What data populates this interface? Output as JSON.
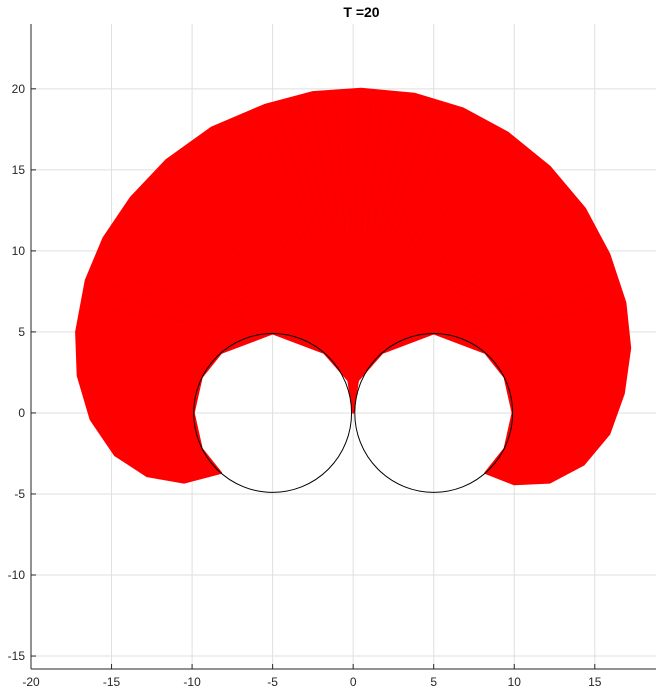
{
  "chart_data": {
    "type": "scatter",
    "title": "T =20",
    "xlabel": "",
    "ylabel": "",
    "xlim": [
      -20,
      18.8
    ],
    "ylim": [
      -15.8,
      24
    ],
    "xticks": [
      -20,
      -15,
      -10,
      -5,
      0,
      5,
      10,
      15
    ],
    "yticks": [
      -15,
      -10,
      -5,
      0,
      5,
      10,
      15,
      20
    ],
    "xtick_labels": [
      "-20",
      "-15",
      "-10",
      "-5",
      "0",
      "5",
      "10",
      "15"
    ],
    "ytick_labels": [
      "-15",
      "-10",
      "-5",
      "0",
      "5",
      "10",
      "15",
      "20"
    ],
    "grid": true,
    "legend": "none",
    "series": [
      {
        "kind": "star-markers",
        "color": "#ff0000",
        "description_points": "involute filaments unwinding from two circles, tips reaching the outer envelope",
        "outer_envelope": [
          [
            -8.2,
            -3.7
          ],
          [
            -10.5,
            -4.3
          ],
          [
            -12.8,
            -3.9
          ],
          [
            -14.8,
            -2.6
          ],
          [
            -16.3,
            -0.4
          ],
          [
            -17.1,
            2.3
          ],
          [
            -17.2,
            5.0
          ],
          [
            -16.6,
            8.2
          ],
          [
            -15.5,
            10.8
          ],
          [
            -13.8,
            13.3
          ],
          [
            -11.6,
            15.6
          ],
          [
            -8.8,
            17.6
          ],
          [
            -5.5,
            19.0
          ],
          [
            -2.5,
            19.8
          ],
          [
            0.5,
            20.0
          ],
          [
            3.8,
            19.7
          ],
          [
            6.8,
            18.8
          ],
          [
            9.6,
            17.3
          ],
          [
            12.2,
            15.2
          ],
          [
            14.4,
            12.6
          ],
          [
            15.9,
            9.8
          ],
          [
            16.9,
            6.8
          ],
          [
            17.2,
            4.0
          ],
          [
            16.8,
            1.2
          ],
          [
            15.9,
            -1.3
          ],
          [
            14.3,
            -3.2
          ],
          [
            12.2,
            -4.3
          ],
          [
            10.0,
            -4.4
          ],
          [
            8.2,
            -3.7
          ]
        ],
        "inner_boundary_left": [
          [
            -8.2,
            -3.7
          ],
          [
            -9.4,
            -2.2
          ],
          [
            -9.9,
            0.0
          ],
          [
            -9.4,
            2.2
          ],
          [
            -8.2,
            3.7
          ],
          [
            -5.0,
            4.9
          ],
          [
            -1.8,
            3.7
          ],
          [
            -0.3,
            2.0
          ],
          [
            0.0,
            0.0
          ]
        ],
        "inner_boundary_right": [
          [
            0.0,
            0.0
          ],
          [
            0.3,
            2.0
          ],
          [
            1.8,
            3.7
          ],
          [
            5.0,
            4.9
          ],
          [
            8.2,
            3.7
          ],
          [
            9.4,
            2.2
          ],
          [
            9.9,
            0.0
          ],
          [
            9.4,
            -2.2
          ],
          [
            8.2,
            -3.7
          ]
        ]
      },
      {
        "kind": "circle",
        "color": "#000000",
        "center": [
          -5,
          0
        ],
        "radius": 4.9
      },
      {
        "kind": "circle",
        "color": "#000000",
        "center": [
          5,
          0
        ],
        "radius": 4.9
      }
    ]
  }
}
